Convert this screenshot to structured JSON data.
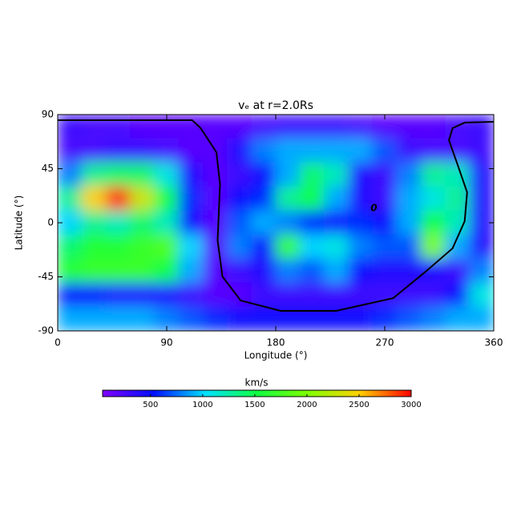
{
  "chart_data": {
    "type": "heatmap",
    "title": "vₑ at r=2.0Rs",
    "x_label": "Longitude (°)",
    "y_label": "Latitude (°)",
    "xlim": [
      0,
      360
    ],
    "xticks": [
      0,
      90,
      180,
      270,
      360
    ],
    "ylim": [
      -90,
      90
    ],
    "yticks": [
      90,
      45,
      0,
      -45,
      -90
    ],
    "x": [
      10,
      30,
      50,
      70,
      90,
      110,
      130,
      150,
      170,
      190,
      210,
      230,
      250,
      270,
      290,
      310,
      330,
      350
    ],
    "y": [
      80,
      60,
      40,
      20,
      0,
      -20,
      -40,
      -60,
      -80
    ],
    "values": [
      [
        300,
        250,
        250,
        200,
        200,
        200,
        200,
        200,
        250,
        300,
        300,
        300,
        250,
        200,
        200,
        200,
        250,
        300
      ],
      [
        250,
        250,
        300,
        300,
        250,
        200,
        200,
        400,
        800,
        900,
        900,
        900,
        900,
        700,
        300,
        250,
        250,
        300
      ],
      [
        800,
        1300,
        1400,
        1400,
        1100,
        400,
        200,
        300,
        500,
        900,
        1400,
        1200,
        400,
        300,
        800,
        1300,
        1200,
        400
      ],
      [
        1300,
        2500,
        2900,
        2300,
        1500,
        600,
        200,
        500,
        600,
        1300,
        1500,
        900,
        400,
        300,
        900,
        1100,
        1300,
        400
      ],
      [
        1000,
        1300,
        1200,
        1400,
        1200,
        500,
        200,
        700,
        900,
        800,
        600,
        500,
        600,
        500,
        900,
        1500,
        1200,
        400
      ],
      [
        1400,
        1600,
        1600,
        1700,
        1800,
        1000,
        200,
        800,
        500,
        1700,
        1000,
        1100,
        800,
        700,
        700,
        2000,
        900,
        400
      ],
      [
        1600,
        1700,
        1700,
        1700,
        1500,
        900,
        200,
        300,
        400,
        800,
        700,
        900,
        500,
        400,
        400,
        400,
        300,
        800
      ],
      [
        500,
        500,
        400,
        400,
        400,
        300,
        200,
        200,
        300,
        300,
        300,
        300,
        300,
        300,
        300,
        300,
        500,
        1100
      ],
      [
        900,
        900,
        900,
        900,
        800,
        700,
        600,
        500,
        500,
        500,
        500,
        500,
        500,
        600,
        700,
        800,
        900,
        900
      ]
    ],
    "colormap": [
      "#8000ff",
      "#0010ff",
      "#00e0ff",
      "#10ff40",
      "#80ff00",
      "#ffd000",
      "#ff0000"
    ],
    "colorbar": {
      "label": "km/s",
      "clim": [
        40,
        3000
      ],
      "ticks": [
        500,
        1000,
        1500,
        2000,
        2500,
        3000
      ]
    },
    "contour": {
      "label": "0",
      "label_x": 261,
      "label_y": 12,
      "x": [
        0,
        111,
        118,
        131,
        134,
        132,
        136,
        151,
        184,
        230,
        277,
        303,
        326,
        336,
        338,
        330,
        323,
        326,
        336,
        360
      ],
      "y": [
        85.3,
        85.3,
        78.7,
        58.7,
        32,
        -14.7,
        -44.7,
        -64.7,
        -73.3,
        -73.3,
        -62.7,
        -41.3,
        -21.3,
        1.3,
        25.3,
        48.7,
        68.7,
        78.7,
        83.3,
        84
      ]
    }
  }
}
